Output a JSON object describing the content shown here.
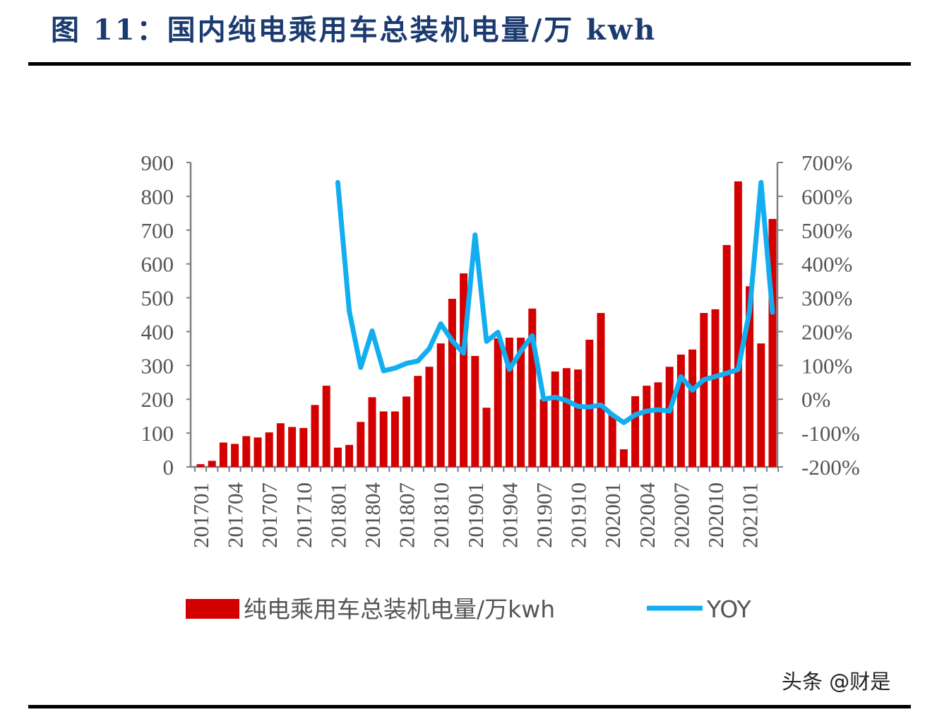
{
  "title": "图 11：国内纯电乘用车总装机电量/万 kwh",
  "watermark": "头条 @财是",
  "chart_data": {
    "type": "bar+line",
    "title": "",
    "categories": [
      "201701",
      "201702",
      "201703",
      "201704",
      "201705",
      "201706",
      "201707",
      "201708",
      "201709",
      "201710",
      "201711",
      "201712",
      "201801",
      "201802",
      "201803",
      "201804",
      "201805",
      "201806",
      "201807",
      "201808",
      "201809",
      "201810",
      "201811",
      "201812",
      "201901",
      "201902",
      "201903",
      "201904",
      "201905",
      "201906",
      "201907",
      "201908",
      "201909",
      "201910",
      "201911",
      "201912",
      "202001",
      "202002",
      "202003",
      "202004",
      "202005",
      "202006",
      "202007",
      "202008",
      "202009",
      "202010",
      "202011",
      "202012",
      "202101",
      "202102",
      "202103"
    ],
    "x_tick_labels": [
      "201701",
      "201704",
      "201707",
      "201710",
      "201801",
      "201804",
      "201807",
      "201810",
      "201901",
      "201904",
      "201907",
      "201910",
      "202001",
      "202004",
      "202007",
      "202010",
      "202101"
    ],
    "series": [
      {
        "name": "纯电乘用车总装机电量/万kwh",
        "type": "bar",
        "axis": "left",
        "color": "#d40000",
        "values": [
          8,
          18,
          72,
          68,
          91,
          87,
          102,
          129,
          118,
          115,
          183,
          240,
          57,
          65,
          133,
          206,
          164,
          164,
          208,
          269,
          296,
          365,
          497,
          572,
          328,
          175,
          380,
          382,
          382,
          468,
          200,
          282,
          292,
          288,
          376,
          455,
          155,
          52,
          209,
          240,
          250,
          296,
          332,
          347,
          455,
          466,
          656,
          844,
          534,
          365,
          733
        ]
      },
      {
        "name": "YOY",
        "type": "line",
        "axis": "right",
        "color": "#12aef0",
        "values": [
          null,
          null,
          null,
          null,
          null,
          null,
          null,
          null,
          null,
          null,
          null,
          null,
          641,
          261,
          94,
          202,
          84,
          92,
          106,
          113,
          150,
          223,
          173,
          136,
          486,
          171,
          198,
          88,
          142,
          188,
          0,
          6,
          -4,
          -21,
          -23,
          -17,
          -46,
          -69,
          -46,
          -35,
          -31,
          -35,
          67,
          27,
          58,
          67,
          77,
          88,
          261,
          641,
          257
        ]
      }
    ],
    "left_axis": {
      "min": 0,
      "max": 900,
      "step": 100,
      "tick_labels": [
        "0",
        "100",
        "200",
        "300",
        "400",
        "500",
        "600",
        "700",
        "800",
        "900"
      ]
    },
    "right_axis": {
      "min": -200,
      "max": 700,
      "step": 100,
      "tick_labels": [
        "-200%",
        "-100%",
        "0%",
        "100%",
        "200%",
        "300%",
        "400%",
        "500%",
        "600%",
        "700%"
      ]
    },
    "legend_position": "bottom",
    "grid": false
  }
}
